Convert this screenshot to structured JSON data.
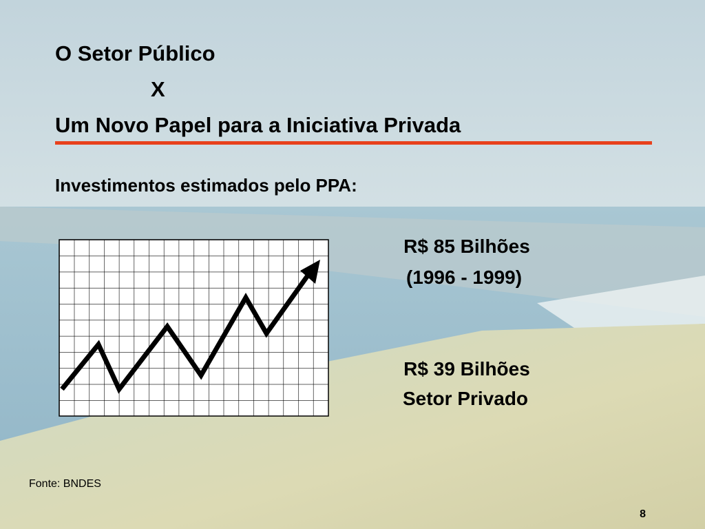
{
  "slide": {
    "title": [
      "O Setor Público",
      "X",
      "Um Novo Papel para a Iniciativa Privada"
    ],
    "subtitle": "Investimentos estimados pelo PPA:",
    "figures": [
      {
        "amount": "R$ 85 Bilhões",
        "note": "(1996 - 1999)"
      },
      {
        "amount": "R$ 39 Bilhões",
        "note": "Setor Privado"
      }
    ],
    "source": "Fonte: BNDES",
    "page_number": "8"
  }
}
